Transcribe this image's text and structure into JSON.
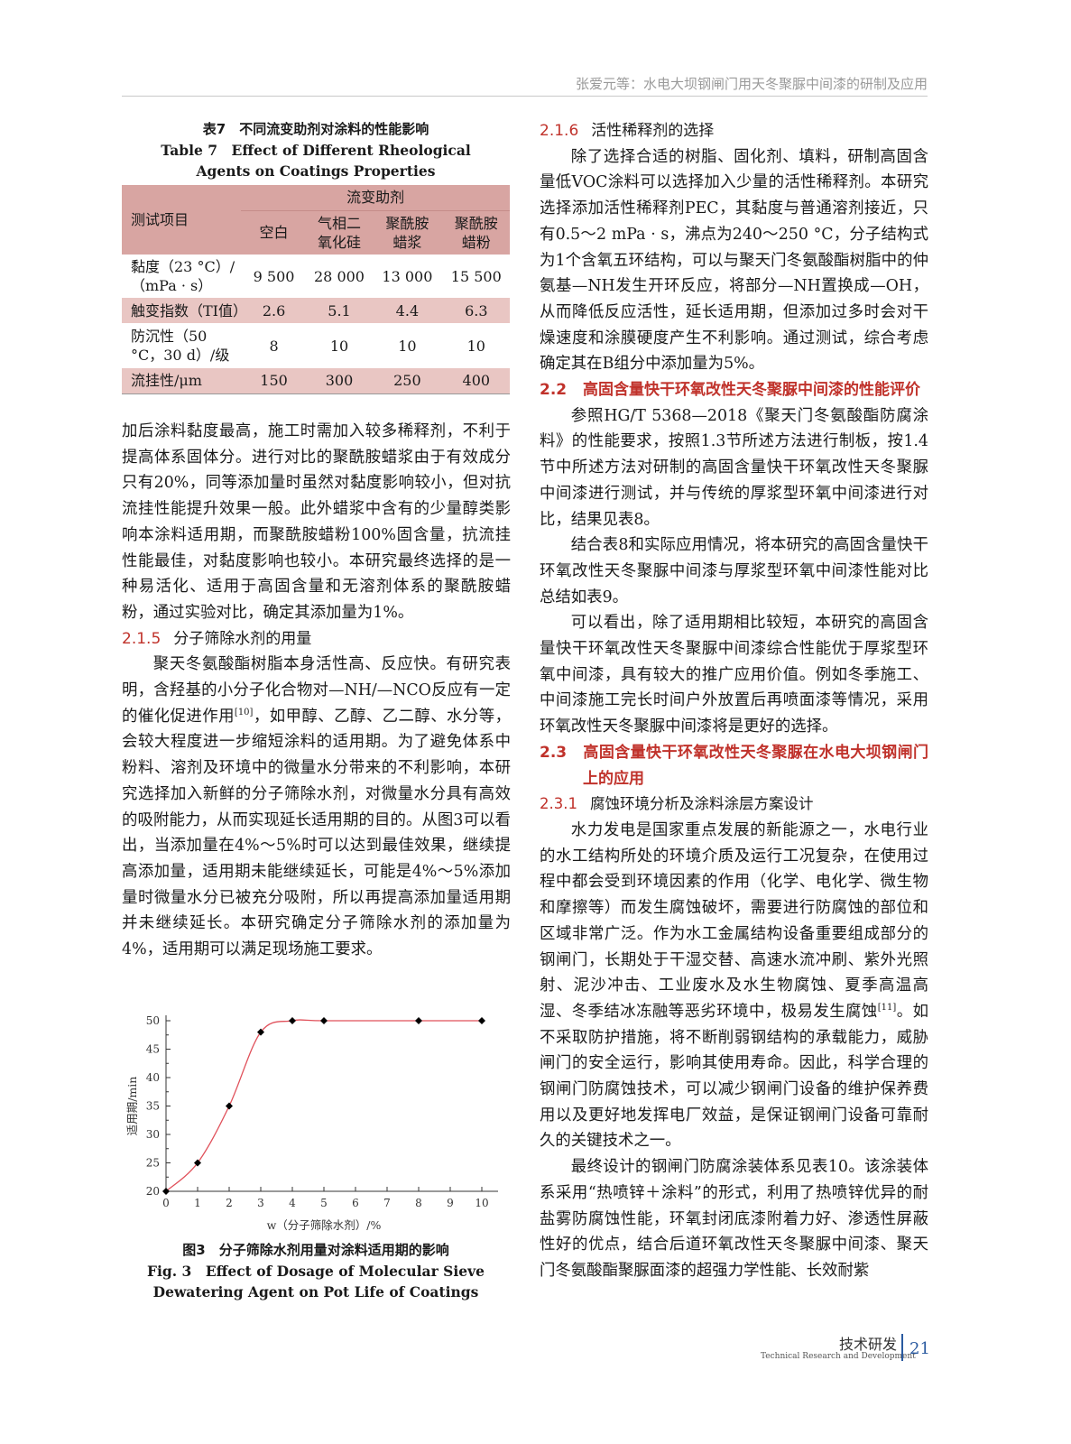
{
  "header": {
    "running_title": "张爱元等：水电大坝钢闸门用天冬聚脲中间漆的研制及应用"
  },
  "table7": {
    "caption_cn": "表7　不同流变助剂对涂料的性能影响",
    "caption_en": "Table 7　Effect of Different Rheological Agents on Coatings Properties",
    "col_header_item": "测试项目",
    "col_group": "流变助剂",
    "columns": [
      "空白",
      "气相二氧化硅",
      "聚酰胺蜡浆",
      "聚酰胺蜡粉"
    ],
    "rows": [
      {
        "label": "黏度（23 °C）/（mPa · s）",
        "values": [
          "9 500",
          "28 000",
          "13 000",
          "15 500"
        ]
      },
      {
        "label": "触变指数（TI值）",
        "values": [
          "2.6",
          "5.1",
          "4.4",
          "6.3"
        ]
      },
      {
        "label": "防沉性（50 °C，30 d）/级",
        "values": [
          "8",
          "10",
          "10",
          "10"
        ]
      },
      {
        "label": "流挂性/μm",
        "values": [
          "150",
          "300",
          "250",
          "400"
        ]
      }
    ]
  },
  "left": {
    "p1": "加后涂料黏度最高，施工时需加入较多稀释剂，不利于提高体系固体分。进行对比的聚酰胺蜡浆由于有效成分只有20%，同等添加量时虽然对黏度影响较小，但对抗流挂性能提升效果一般。此外蜡浆中含有的少量醇类影响本涂料适用期，而聚酰胺蜡粉100%固含量，抗流挂性能最佳，对黏度影响也较小。本研究最终选择的是一种易活化、适用于高固含量和无溶剂体系的聚酰胺蜡粉，通过实验对比，确定其添加量为1%。",
    "h215_num": "2.1.5",
    "h215_title": "分子筛除水剂的用量",
    "p2a": "聚天冬氨酸酯树脂本身活性高、反应快。有研究表明，含羟基的小分子化合物对—NH/—NCO反应有一定的催化促进作用",
    "p2ref": "[10]",
    "p2b": "，如甲醇、乙醇、乙二醇、水分等，会较大程度进一步缩短涂料的适用期。为了避免体系中粉料、溶剂及环境中的微量水分带来的不利影响，本研究选择加入新鲜的分子筛除水剂，对微量水分具有高效的吸附能力，从而实现延长适用期的目的。从图3可以看出，当添加量在4%～5%时可以达到最佳效果，继续提高添加量，适用期未能继续延长，可能是4%～5%添加量时微量水分已被充分吸附，所以再提高添加量适用期并未继续延长。本研究确定分子筛除水剂的添加量为4%，适用期可以满足现场施工要求。"
  },
  "figure3": {
    "caption_cn": "图3　分子筛除水剂用量对涂料适用期的影响",
    "caption_en": "Fig. 3　Effect of Dosage of Molecular Sieve Dewatering Agent on Pot Life of Coatings"
  },
  "chart_data": {
    "type": "line",
    "x": [
      0,
      1,
      2,
      3,
      4,
      5,
      8,
      10
    ],
    "y": [
      20,
      25,
      35,
      48,
      50,
      50,
      50,
      50
    ],
    "xlabel": "w（分子筛除水剂）/%",
    "ylabel": "适用期/min",
    "xlim": [
      0,
      10
    ],
    "ylim": [
      20,
      50
    ],
    "xticks": [
      0,
      1,
      2,
      3,
      4,
      5,
      6,
      7,
      8,
      9,
      10
    ],
    "yticks": [
      20,
      25,
      30,
      35,
      40,
      45,
      50
    ],
    "line_color": "#e0505a",
    "marker": "diamond",
    "marker_color": "#000000",
    "grid": false
  },
  "right": {
    "h216_num": "2.1.6",
    "h216_title": "活性稀释剂的选择",
    "p1": "除了选择合适的树脂、固化剂、填料，研制高固含量低VOC涂料可以选择加入少量的活性稀释剂。本研究选择添加活性稀释剂PEC，其黏度与普通溶剂接近，只有0.5～2 mPa · s，沸点为240～250 °C，分子结构式为1个含氧五环结构，可以与聚天门冬氨酸酯树脂中的仲氨基—NH发生开环反应，将部分—NH置换成—OH，从而降低反应活性，延长适用期，但添加过多时会对干燥速度和涂膜硬度产生不利影响。通过测试，综合考虑确定其在B组分中添加量为5%。",
    "h22_num": "2.2",
    "h22_title": "高固含量快干环氧改性天冬聚脲中间漆的性能评价",
    "p2": "参照HG/T 5368—2018《聚天门冬氨酸酯防腐涂料》的性能要求，按照1.3节所述方法进行制板，按1.4节中所述方法对研制的高固含量快干环氧改性天冬聚脲中间漆进行测试，并与传统的厚浆型环氧中间漆进行对比，结果见表8。",
    "p3": "结合表8和实际应用情况，将本研究的高固含量快干环氧改性天冬聚脲中间漆与厚浆型环氧中间漆性能对比总结如表9。",
    "p4": "可以看出，除了适用期相比较短，本研究的高固含量快干环氧改性天冬聚脲中间漆综合性能优于厚浆型环氧中间漆，具有较大的推广应用价值。例如冬季施工、中间漆施工完长时间户外放置后再喷面漆等情况，采用环氧改性天冬聚脲中间漆将是更好的选择。",
    "h23_num": "2.3",
    "h23_title": "高固含量快干环氧改性天冬聚脲在水电大坝钢闸门上的应用",
    "h231_num": "2.3.1",
    "h231_title": "腐蚀环境分析及涂料涂层方案设计",
    "p5a": "水力发电是国家重点发展的新能源之一，水电行业的水工结构所处的环境介质及运行工况复杂，在使用过程中都会受到环境因素的作用（化学、电化学、微生物和摩擦等）而发生腐蚀破坏，需要进行防腐蚀的部位和区域非常广泛。作为水工金属结构设备重要组成部分的钢闸门，长期处于干湿交替、高速水流冲刷、紫外光照射、泥沙冲击、工业废水及水生物腐蚀、夏季高温高湿、冬季结冰冻融等恶劣环境中，极易发生腐蚀",
    "p5ref": "[11]",
    "p5b": "。如不采取防护措施，将不断削弱钢结构的承载能力，威胁闸门的安全运行，影响其使用寿命。因此，科学合理的钢闸门防腐蚀技术，可以减少钢闸门设备的维护保养费用以及更好地发挥电厂效益，是保证钢闸门设备可靠耐久的关键技术之一。",
    "p6": "最终设计的钢闸门防腐涂装体系见表10。该涂装体系采用“热喷锌＋涂料”的形式，利用了热喷锌优异的耐盐雾防腐蚀性能，环氧封闭底漆附着力好、渗透性屏蔽性好的优点，结合后道环氧改性天冬聚脲中间漆、聚天门冬氨酸酯聚脲面漆的超强力学性能、长效耐紫"
  },
  "footer": {
    "section_cn": "技术研发",
    "section_en": "Technical Research and Development",
    "page_number": "21"
  }
}
